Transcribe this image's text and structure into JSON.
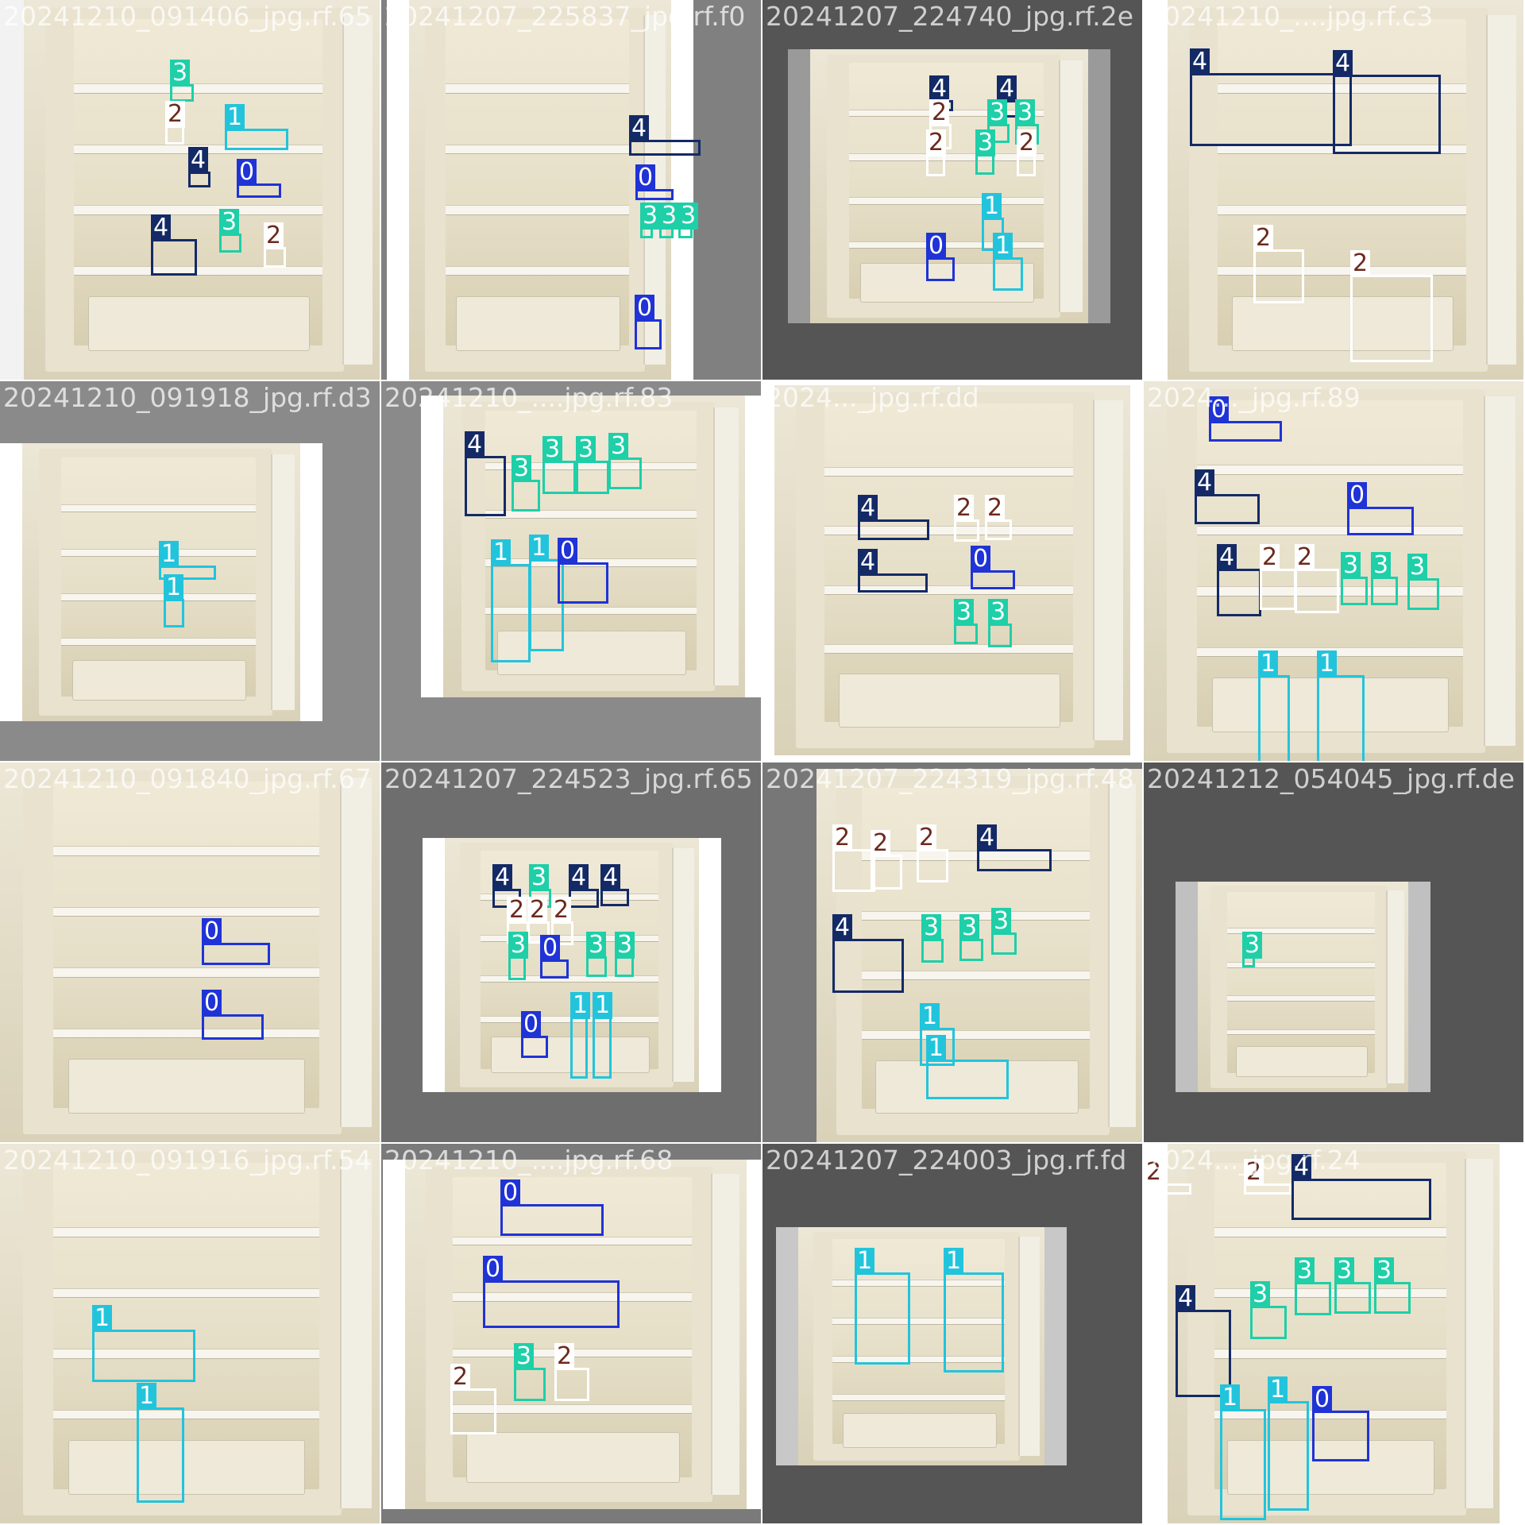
{
  "colors": {
    "class0": "#1f33d6",
    "class1": "#22c4dc",
    "class2": "#ffffff",
    "class3": "#1ecfa8",
    "class4": "#142a66",
    "class2_text": "#6b2a1c"
  },
  "tiles": [
    {
      "caption": "20241210_091406_jpg.rf.65",
      "boxes": [
        {
          "label": "3"
        },
        {
          "label": "2"
        },
        {
          "label": "1"
        },
        {
          "label": "4"
        },
        {
          "label": "0"
        },
        {
          "label": "4"
        },
        {
          "label": "3"
        },
        {
          "label": "2"
        }
      ]
    },
    {
      "caption": "20241207_225837_jpg.rf.f0",
      "boxes": [
        {
          "label": "4"
        },
        {
          "label": "0"
        },
        {
          "label": "3"
        },
        {
          "label": "3"
        },
        {
          "label": "3"
        },
        {
          "label": "0"
        }
      ]
    },
    {
      "caption": "20241207_224740_jpg.rf.2e",
      "boxes": [
        {
          "label": "4"
        },
        {
          "label": "4"
        },
        {
          "label": "2"
        },
        {
          "label": "3"
        },
        {
          "label": "3"
        },
        {
          "label": "2"
        },
        {
          "label": "3"
        },
        {
          "label": "2"
        },
        {
          "label": "1"
        },
        {
          "label": "0"
        },
        {
          "label": "1"
        }
      ]
    },
    {
      "caption": "20241210_....jpg.rf.c3",
      "boxes": [
        {
          "label": "4"
        },
        {
          "label": "4"
        },
        {
          "label": "2"
        },
        {
          "label": "2"
        }
      ]
    },
    {
      "caption": "20241210_091918_jpg.rf.d3",
      "boxes": [
        {
          "label": "1"
        },
        {
          "label": "1"
        }
      ]
    },
    {
      "caption": "20241210_....jpg.rf.83",
      "boxes": [
        {
          "label": "4"
        },
        {
          "label": "3"
        },
        {
          "label": "3"
        },
        {
          "label": "3"
        },
        {
          "label": "3"
        },
        {
          "label": "1"
        },
        {
          "label": "1"
        },
        {
          "label": "0"
        }
      ]
    },
    {
      "caption": "2024..._jpg.rf.dd",
      "boxes": [
        {
          "label": "4"
        },
        {
          "label": "2"
        },
        {
          "label": "2"
        },
        {
          "label": "4"
        },
        {
          "label": "0"
        },
        {
          "label": "3"
        },
        {
          "label": "3"
        }
      ]
    },
    {
      "caption": "2024..._jpg.rf.89",
      "boxes": [
        {
          "label": "0"
        },
        {
          "label": "4"
        },
        {
          "label": "0"
        },
        {
          "label": "4"
        },
        {
          "label": "2"
        },
        {
          "label": "2"
        },
        {
          "label": "3"
        },
        {
          "label": "3"
        },
        {
          "label": "3"
        },
        {
          "label": "1"
        },
        {
          "label": "1"
        }
      ]
    },
    {
      "caption": "20241210_091840_jpg.rf.67",
      "boxes": [
        {
          "label": "0"
        },
        {
          "label": "0"
        }
      ]
    },
    {
      "caption": "20241207_224523_jpg.rf.65",
      "boxes": [
        {
          "label": "4"
        },
        {
          "label": "3"
        },
        {
          "label": "4"
        },
        {
          "label": "4"
        },
        {
          "label": "2"
        },
        {
          "label": "2"
        },
        {
          "label": "2"
        },
        {
          "label": "3"
        },
        {
          "label": "0"
        },
        {
          "label": "3"
        },
        {
          "label": "3"
        },
        {
          "label": "0"
        },
        {
          "label": "1"
        },
        {
          "label": "1"
        }
      ]
    },
    {
      "caption": "20241207_224319_jpg.rf.48",
      "boxes": [
        {
          "label": "2"
        },
        {
          "label": "2"
        },
        {
          "label": "2"
        },
        {
          "label": "4"
        },
        {
          "label": "4"
        },
        {
          "label": "3"
        },
        {
          "label": "3"
        },
        {
          "label": "3"
        },
        {
          "label": "1"
        },
        {
          "label": "1"
        }
      ]
    },
    {
      "caption": "20241212_054045_jpg.rf.de",
      "boxes": [
        {
          "label": "3"
        }
      ]
    },
    {
      "caption": "20241210_091916_jpg.rf.54",
      "boxes": [
        {
          "label": "1"
        },
        {
          "label": "1"
        }
      ]
    },
    {
      "caption": "20241210_....jpg.rf.68",
      "boxes": [
        {
          "label": "0"
        },
        {
          "label": "0"
        },
        {
          "label": "2"
        },
        {
          "label": "3"
        },
        {
          "label": "2"
        }
      ]
    },
    {
      "caption": "20241207_224003_jpg.rf.fd",
      "boxes": [
        {
          "label": "1"
        },
        {
          "label": "1"
        }
      ]
    },
    {
      "caption": "2024..._jpg.rf.24",
      "boxes": [
        {
          "label": "2"
        },
        {
          "label": "2"
        },
        {
          "label": "4"
        },
        {
          "label": "4"
        },
        {
          "label": "3"
        },
        {
          "label": "3"
        },
        {
          "label": "3"
        },
        {
          "label": "3"
        },
        {
          "label": "1"
        },
        {
          "label": "1"
        },
        {
          "label": "0"
        }
      ]
    }
  ]
}
